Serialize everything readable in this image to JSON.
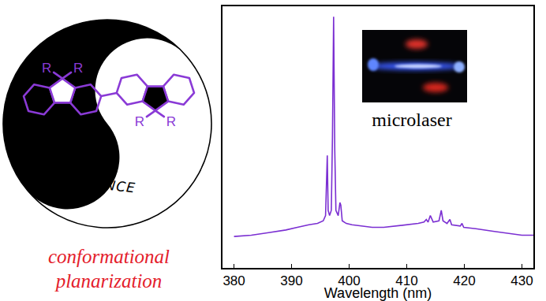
{
  "chart_data": {
    "type": "line",
    "xlabel": "Wavelength (nm)",
    "x": [
      380,
      383,
      386,
      389,
      391,
      393,
      394.5,
      395.5,
      395.9,
      396.1,
      396.2,
      396.35,
      396.6,
      396.9,
      397.1,
      397.3,
      397.5,
      397.7,
      398.1,
      398.4,
      398.55,
      398.8,
      399.5,
      400.5,
      402,
      404,
      406,
      408,
      410,
      412,
      413,
      413.4,
      413.7,
      414.1,
      414.3,
      414.6,
      415.6,
      416,
      416.3,
      417,
      417.5,
      417.8,
      419.3,
      419.6,
      419.9,
      422,
      425,
      428,
      430,
      432
    ],
    "values": [
      12,
      12.5,
      13.5,
      14.5,
      15.5,
      16.5,
      17,
      18,
      20,
      36,
      43,
      22,
      20,
      22,
      50,
      96,
      45,
      22,
      20,
      25,
      24,
      18,
      17,
      16.5,
      16,
      15.5,
      15.5,
      16,
      16.5,
      17,
      17.5,
      18.5,
      17.5,
      20,
      19,
      17.5,
      18,
      22,
      18,
      17,
      18.5,
      16.5,
      16,
      17,
      15.5,
      15,
      14,
      13,
      12.5,
      12.5
    ],
    "color": "#7b2fd2",
    "xlim": [
      378,
      432
    ],
    "xticks": [
      380,
      390,
      400,
      410,
      420,
      430
    ],
    "ylim": [
      0,
      100
    ],
    "tick_labels": "x",
    "annotations": [
      "microlaser"
    ]
  },
  "diagram": {
    "substituents": [
      "R",
      "R",
      "R",
      "R"
    ],
    "label": "BALANCE",
    "caption": [
      "conformational",
      "planarization"
    ]
  }
}
